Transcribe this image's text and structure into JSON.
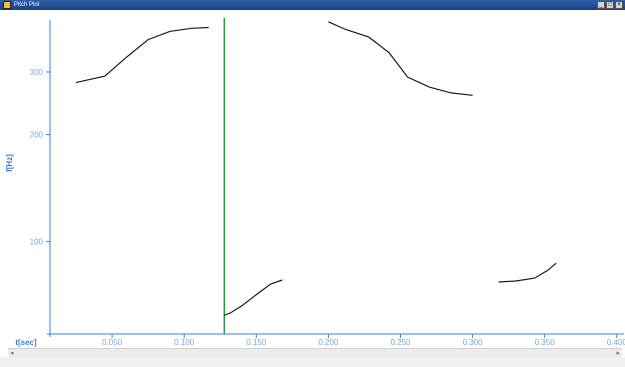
{
  "window": {
    "title": "Pitch Plot",
    "controls": [
      "_",
      "□",
      "×"
    ]
  },
  "status": {
    "text": ""
  },
  "colors": {
    "axis": "#3b7fd0",
    "cursor": "#1e9f4a",
    "curve": "#1a1a1a"
  },
  "chart_data": {
    "type": "line",
    "xlabel": "t[sec]",
    "ylabel": "f[Hz]",
    "x_ticks": [
      {
        "v": 0.05,
        "label": "0.050"
      },
      {
        "v": 0.1,
        "label": "0.100"
      },
      {
        "v": 0.15,
        "label": "0.150"
      },
      {
        "v": 0.2,
        "label": "0.200"
      },
      {
        "v": 0.25,
        "label": "0.250"
      },
      {
        "v": 0.3,
        "label": "0.300"
      },
      {
        "v": 0.35,
        "label": "0.350"
      },
      {
        "v": 0.4,
        "label": "0.400"
      }
    ],
    "y_ticks": [
      {
        "v": 100,
        "label": "100"
      },
      {
        "v": 200,
        "label": "200"
      },
      {
        "v": 300,
        "label": "300"
      }
    ],
    "xlim": [
      0.0,
      0.405
    ],
    "ylim": [
      55,
      420
    ],
    "y_scale": "log",
    "cursor_x": 0.1278,
    "series": [
      {
        "x": [
          0.025,
          0.033,
          0.045,
          0.06,
          0.075,
          0.09,
          0.105,
          0.117
        ],
        "y": [
          280,
          285,
          292,
          330,
          370,
          390,
          398,
          400
        ]
      },
      {
        "x": [
          0.1275,
          0.132,
          0.14,
          0.15,
          0.16,
          0.168
        ],
        "y": [
          62,
          63,
          66,
          71,
          76,
          78
        ]
      },
      {
        "x": [
          0.2,
          0.212,
          0.228,
          0.242,
          0.255,
          0.27,
          0.285,
          0.3
        ],
        "y": [
          415,
          395,
          376,
          340,
          290,
          272,
          262,
          258
        ]
      },
      {
        "x": [
          0.318,
          0.33,
          0.343,
          0.352,
          0.358
        ],
        "y": [
          77,
          77.5,
          79,
          83,
          87
        ]
      }
    ]
  }
}
